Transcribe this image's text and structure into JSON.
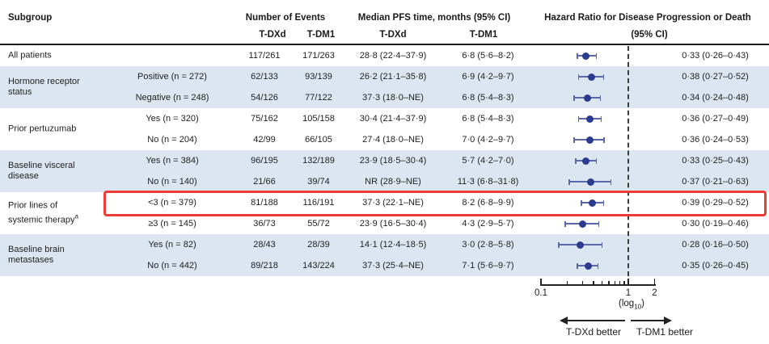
{
  "colors": {
    "row_band": "#dce6f1",
    "marker_dot": "#2b3b8f",
    "marker_whisker": "#5a68ab",
    "highlight_border": "#ef3b36",
    "axis": "#222222"
  },
  "header": {
    "subgroup": "Subgroup",
    "events_group": "Number of Events",
    "pfs_group": "Median PFS time, months (95% CI)",
    "hr_line1": "Hazard Ratio for Disease Progression or Death",
    "hr_line2": "(95% CI)",
    "events_tdxd": "T-DXd",
    "events_tdm1": "T-DM1",
    "pfs_tdxd": "T-DXd",
    "pfs_tdm1": "T-DM1"
  },
  "categories": [
    {
      "lines": [
        "All patients"
      ],
      "sup": "",
      "start": 0,
      "end": 0
    },
    {
      "lines": [
        "Hormone receptor",
        "status"
      ],
      "sup": "",
      "start": 1,
      "end": 2
    },
    {
      "lines": [
        "Prior pertuzumab"
      ],
      "sup": "",
      "start": 3,
      "end": 4
    },
    {
      "lines": [
        "Baseline visceral",
        "disease"
      ],
      "sup": "",
      "start": 5,
      "end": 6
    },
    {
      "lines": [
        "Prior lines of",
        "systemic therapy"
      ],
      "sup": "a",
      "start": 7,
      "end": 8
    },
    {
      "lines": [
        "Baseline brain",
        "metastases"
      ],
      "sup": "",
      "start": 9,
      "end": 10
    }
  ],
  "rows": [
    {
      "subgroup": "",
      "events_tdxd": "117/261",
      "events_tdm1": "171/263",
      "pfs_tdxd": "28·8 (22·4–37·9)",
      "pfs_tdm1": "6·8 (5·6–8·2)",
      "hr_text": "0·33 (0·26–0·43)",
      "band": false,
      "highlight": false
    },
    {
      "subgroup": "Positive (n = 272)",
      "events_tdxd": "62/133",
      "events_tdm1": "93/139",
      "pfs_tdxd": "26·2 (21·1–35·8)",
      "pfs_tdm1": "6·9 (4·2–9·7)",
      "hr_text": "0·38 (0·27–0·52)",
      "band": true,
      "highlight": false
    },
    {
      "subgroup": "Negative (n = 248)",
      "events_tdxd": "54/126",
      "events_tdm1": "77/122",
      "pfs_tdxd": "37·3 (18·0–NE)",
      "pfs_tdm1": "6·8 (5·4–8·3)",
      "hr_text": "0·34 (0·24–0·48)",
      "band": true,
      "highlight": false
    },
    {
      "subgroup": "Yes (n = 320)",
      "events_tdxd": "75/162",
      "events_tdm1": "105/158",
      "pfs_tdxd": "30·4 (21·4–37·9)",
      "pfs_tdm1": "6·8 (5·4–8·3)",
      "hr_text": "0·36 (0·27–0·49)",
      "band": false,
      "highlight": false
    },
    {
      "subgroup": "No (n = 204)",
      "events_tdxd": "42/99",
      "events_tdm1": "66/105",
      "pfs_tdxd": "27·4 (18·0–NE)",
      "pfs_tdm1": "7·0 (4·2–9·7)",
      "hr_text": "0·36 (0·24–0·53)",
      "band": false,
      "highlight": false
    },
    {
      "subgroup": "Yes (n = 384)",
      "events_tdxd": "96/195",
      "events_tdm1": "132/189",
      "pfs_tdxd": "23·9 (18·5–30·4)",
      "pfs_tdm1": "5·7 (4·2–7·0)",
      "hr_text": "0·33 (0·25–0·43)",
      "band": true,
      "highlight": false
    },
    {
      "subgroup": "No (n = 140)",
      "events_tdxd": "21/66",
      "events_tdm1": "39/74",
      "pfs_tdxd": "NR (28·9–NE)",
      "pfs_tdm1": "11·3 (6·8–31·8)",
      "hr_text": "0·37 (0·21–0·63)",
      "band": true,
      "highlight": false
    },
    {
      "subgroup": "<3 (n = 379)",
      "events_tdxd": "81/188",
      "events_tdm1": "116/191",
      "pfs_tdxd": "37·3 (22·1–NE)",
      "pfs_tdm1": "8·2 (6·8–9·9)",
      "hr_text": "0·39 (0·29–0·52)",
      "band": false,
      "highlight": true
    },
    {
      "subgroup": "≥3 (n = 145)",
      "events_tdxd": "36/73",
      "events_tdm1": "55/72",
      "pfs_tdxd": "23·9 (16·5–30·4)",
      "pfs_tdm1": "4·3 (2·9–5·7)",
      "hr_text": "0·30 (0·19–0·46)",
      "band": false,
      "highlight": false
    },
    {
      "subgroup": "Yes (n = 82)",
      "events_tdxd": "28/43",
      "events_tdm1": "28/39",
      "pfs_tdxd": "14·1 (12·4–18·5)",
      "pfs_tdm1": "3·0 (2·8–5·8)",
      "hr_text": "0·28 (0·16–0·50)",
      "band": true,
      "highlight": false
    },
    {
      "subgroup": "No (n = 442)",
      "events_tdxd": "89/218",
      "events_tdm1": "143/224",
      "pfs_tdxd": "37·3 (25·4–NE)",
      "pfs_tdm1": "7·1 (5·6–9·7)",
      "hr_text": "0·35 (0·26–0·45)",
      "band": true,
      "highlight": false
    }
  ],
  "axis": {
    "scale_prefix": "(log",
    "scale_sub": "10",
    "scale_suffix": ")"
  },
  "arrows": {
    "left_label": "T-DXd better",
    "right_label": "T-DM1 better"
  },
  "chart_data": {
    "type": "scatter",
    "subtype": "forest-plot",
    "title": "Hazard Ratio for Disease Progression or Death (95% CI), T-DXd vs T-DM1",
    "x_scale": "log10",
    "xlim": [
      0.1,
      2
    ],
    "reference_line_x": 1,
    "x_ticks": [
      0.1,
      0.2,
      0.3,
      0.4,
      0.5,
      0.6,
      0.7,
      0.8,
      0.9,
      1,
      2
    ],
    "x_tick_labels": [
      {
        "v": 0.1,
        "label": "0.1"
      },
      {
        "v": 1,
        "label": "1"
      },
      {
        "v": 2,
        "label": "2"
      }
    ],
    "points": [
      {
        "label": "All patients",
        "hr": 0.33,
        "lo": 0.26,
        "hi": 0.43
      },
      {
        "label": "Hormone receptor status: Positive (n = 272)",
        "hr": 0.38,
        "lo": 0.27,
        "hi": 0.52
      },
      {
        "label": "Hormone receptor status: Negative (n = 248)",
        "hr": 0.34,
        "lo": 0.24,
        "hi": 0.48
      },
      {
        "label": "Prior pertuzumab: Yes (n = 320)",
        "hr": 0.36,
        "lo": 0.27,
        "hi": 0.49
      },
      {
        "label": "Prior pertuzumab: No (n = 204)",
        "hr": 0.36,
        "lo": 0.24,
        "hi": 0.53
      },
      {
        "label": "Baseline visceral disease: Yes (n = 384)",
        "hr": 0.33,
        "lo": 0.25,
        "hi": 0.43
      },
      {
        "label": "Baseline visceral disease: No (n = 140)",
        "hr": 0.37,
        "lo": 0.21,
        "hi": 0.63
      },
      {
        "label": "Prior lines of systemic therapy: <3 (n = 379)",
        "hr": 0.39,
        "lo": 0.29,
        "hi": 0.52
      },
      {
        "label": "Prior lines of systemic therapy: ≥3 (n = 145)",
        "hr": 0.3,
        "lo": 0.19,
        "hi": 0.46
      },
      {
        "label": "Baseline brain metastases: Yes (n = 82)",
        "hr": 0.28,
        "lo": 0.16,
        "hi": 0.5
      },
      {
        "label": "Baseline brain metastases: No (n = 442)",
        "hr": 0.35,
        "lo": 0.26,
        "hi": 0.45
      }
    ]
  }
}
